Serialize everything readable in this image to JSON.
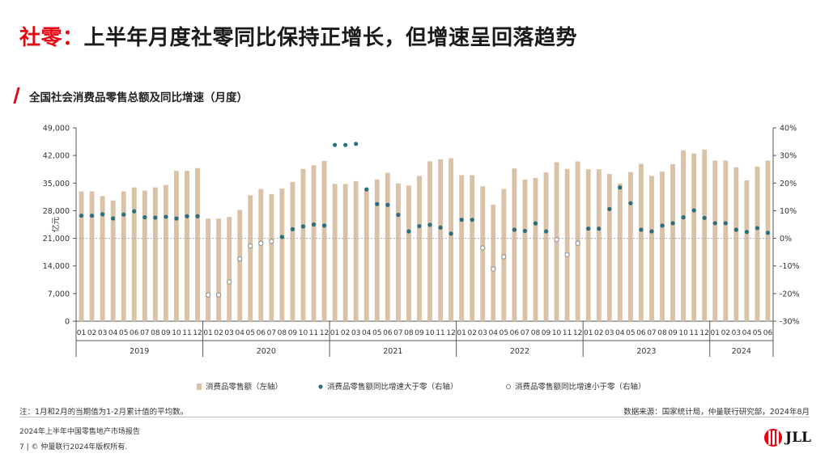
{
  "header": {
    "title_lead": "社零：",
    "title_rest": "上半年月度社零同比保持正增长，但增速呈回落趋势"
  },
  "chart_title": "全国社会消费品零售总额及同比增速（月度）",
  "chart_data": {
    "type": "bar+scatter",
    "ylabel_left": "亿元",
    "ylim_left": [
      0,
      49000
    ],
    "yticks_left": [
      "0",
      "7,000",
      "14,000",
      "21,000",
      "28,000",
      "35,000",
      "42,000",
      "49,000"
    ],
    "ylim_right": [
      -30,
      40
    ],
    "yticks_right": [
      "-30%",
      "-20%",
      "-10%",
      "0%",
      "10%",
      "20%",
      "30%",
      "40%"
    ],
    "x_months": [
      "01",
      "02",
      "03",
      "04",
      "05",
      "06",
      "07",
      "08",
      "09",
      "10",
      "11",
      "12",
      "01",
      "02",
      "03",
      "04",
      "05",
      "06",
      "07",
      "08",
      "09",
      "10",
      "11",
      "12",
      "01",
      "02",
      "03",
      "04",
      "05",
      "06",
      "07",
      "08",
      "09",
      "10",
      "11",
      "12",
      "01",
      "02",
      "03",
      "04",
      "05",
      "06",
      "07",
      "08",
      "09",
      "10",
      "11",
      "12",
      "01",
      "02",
      "03",
      "04",
      "05",
      "06",
      "07",
      "08",
      "09",
      "10",
      "11",
      "12",
      "01",
      "02",
      "03",
      "04",
      "05",
      "06"
    ],
    "years": [
      {
        "label": "2019",
        "count": 12
      },
      {
        "label": "2020",
        "count": 12
      },
      {
        "label": "2021",
        "count": 12
      },
      {
        "label": "2022",
        "count": 12
      },
      {
        "label": "2023",
        "count": 12
      },
      {
        "label": "2024",
        "count": 6
      }
    ],
    "legend": [
      {
        "label": "消费品零售额（左轴）",
        "kind": "bar"
      },
      {
        "label": "消费品零售额同比增速大于零（右轴）",
        "kind": "dot-filled"
      },
      {
        "label": "消费品零售额同比增速小于零（右轴）",
        "kind": "dot-hollow"
      }
    ],
    "colors": {
      "bar": "#d9c2a7",
      "dot_pos": "#2a6f7f",
      "dot_neg": "#ffffff",
      "dot_neg_stroke": "#8a8a8a",
      "zero_line": "#aaaaaa"
    },
    "retail_sales": [
      32900,
      32900,
      31700,
      30600,
      32900,
      33900,
      33100,
      33900,
      34500,
      38100,
      38100,
      38800,
      26000,
      26000,
      26400,
      28200,
      31900,
      33500,
      32200,
      33600,
      35300,
      38600,
      39500,
      40600,
      34800,
      34800,
      35500,
      33200,
      35900,
      37600,
      34900,
      34400,
      36800,
      40500,
      41000,
      41300,
      37000,
      37000,
      34200,
      29500,
      33500,
      38700,
      35900,
      36300,
      37700,
      40300,
      38600,
      40500,
      38500,
      38500,
      37300,
      34900,
      37800,
      39900,
      36800,
      37900,
      39800,
      43300,
      42500,
      43500,
      40700,
      40700,
      39000,
      35700,
      39200,
      40700
    ],
    "yoy_growth": [
      8.2,
      8.2,
      8.7,
      7.2,
      8.6,
      9.8,
      7.6,
      7.5,
      7.8,
      7.2,
      8.0,
      8.0,
      -20.5,
      -20.5,
      -15.8,
      -7.5,
      -2.8,
      -1.8,
      -1.1,
      0.5,
      3.3,
      4.3,
      5.0,
      4.6,
      33.8,
      33.8,
      34.2,
      17.7,
      12.4,
      12.1,
      8.5,
      2.5,
      4.4,
      4.9,
      3.9,
      1.7,
      6.7,
      6.7,
      -3.5,
      -11.1,
      -6.7,
      3.1,
      2.7,
      5.4,
      2.5,
      -0.5,
      -5.9,
      -1.8,
      3.5,
      3.5,
      10.6,
      18.4,
      12.7,
      3.1,
      2.5,
      4.6,
      5.5,
      7.6,
      10.1,
      7.4,
      5.5,
      5.5,
      3.1,
      2.3,
      3.7,
      2.0
    ]
  },
  "note": "注：1月和2月的当期值为1-2月累计值的平均数。",
  "source": "数据来源：国家统计局，仲量联行研究部，2024年8月",
  "report": "2024年上半年中国零售地产市场报告",
  "footer": "7 | © 仲量联行2024年版权所有.",
  "logo": {
    "text": "JLL"
  }
}
